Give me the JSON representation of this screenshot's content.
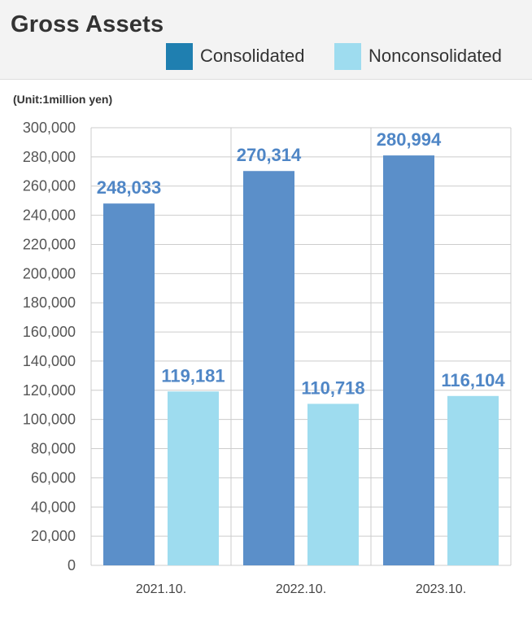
{
  "header": {
    "title": "Gross Assets"
  },
  "unit_label": "(Unit:1million yen)",
  "colors": {
    "consolidated": "#5b8fc9",
    "nonconsolidated": "#9edcef",
    "legend_consolidated": "#1f7fb0",
    "legend_nonconsolidated": "#9edcef",
    "data_label": "#4f86c6",
    "grid": "#cccccc"
  },
  "chart_data": {
    "type": "bar",
    "title": "Gross Assets",
    "xlabel": "",
    "ylabel": "",
    "categories": [
      "2021.10.",
      "2022.10.",
      "2023.10."
    ],
    "series": [
      {
        "name": "Consolidated",
        "values": [
          248033,
          270314,
          280994
        ]
      },
      {
        "name": "Nonconsolidated",
        "values": [
          119181,
          110718,
          116104
        ]
      }
    ],
    "data_labels": [
      [
        "248,033",
        "270,314",
        "280,994"
      ],
      [
        "119,181",
        "110,718",
        "116,104"
      ]
    ],
    "ylim": [
      0,
      300000
    ],
    "yticks": [
      0,
      20000,
      40000,
      60000,
      80000,
      100000,
      120000,
      140000,
      160000,
      180000,
      200000,
      220000,
      240000,
      260000,
      280000,
      300000
    ],
    "ytick_labels": [
      "0",
      "20,000",
      "40,000",
      "60,000",
      "80,000",
      "100,000",
      "120,000",
      "140,000",
      "160,000",
      "180,000",
      "200,000",
      "220,000",
      "240,000",
      "260,000",
      "280,000",
      "300,000"
    ],
    "grid": true,
    "legend": "top-right"
  }
}
